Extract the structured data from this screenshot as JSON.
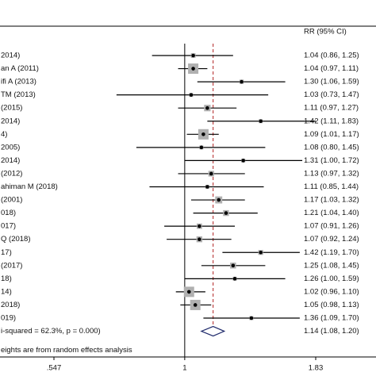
{
  "chart_data": {
    "type": "forest",
    "column_header": "RR (95% CI)",
    "studies": [
      "2014)",
      "an A (2011)",
      "ifi A (2013)",
      "TM (2013)",
      "(2015)",
      "2014)",
      "4)",
      "2005)",
      "2014)",
      "(2012)",
      "ahiman M (2018)",
      "(2001)",
      "018)",
      "017)",
      "Q (2018)",
      "17)",
      "(2017)",
      "18)",
      "14)",
      "2018)",
      "019)"
    ],
    "values": [
      1.04,
      1.04,
      1.3,
      1.03,
      1.11,
      1.42,
      1.09,
      1.08,
      1.31,
      1.13,
      1.11,
      1.17,
      1.21,
      1.07,
      1.07,
      1.42,
      1.25,
      1.26,
      1.02,
      1.05,
      1.36
    ],
    "lower": [
      0.86,
      0.97,
      1.06,
      0.73,
      0.97,
      1.11,
      1.01,
      0.8,
      1.0,
      0.97,
      0.85,
      1.03,
      1.04,
      0.91,
      0.92,
      1.19,
      1.08,
      1.0,
      0.96,
      0.98,
      1.09
    ],
    "upper": [
      1.25,
      1.11,
      1.59,
      1.47,
      1.27,
      1.83,
      1.17,
      1.45,
      1.72,
      1.32,
      1.44,
      1.32,
      1.4,
      1.26,
      1.24,
      1.7,
      1.45,
      1.59,
      1.1,
      1.13,
      1.7
    ],
    "value_labels": [
      "1.04 (0.86, 1.25)",
      "1.04 (0.97, 1.11)",
      "1.30 (1.06, 1.59)",
      "1.03 (0.73, 1.47)",
      "1.11 (0.97, 1.27)",
      "1.42 (1.11, 1.83)",
      "1.09 (1.01, 1.17)",
      "1.08 (0.80, 1.45)",
      "1.31 (1.00, 1.72)",
      "1.13 (0.97, 1.32)",
      "1.11 (0.85, 1.44)",
      "1.17 (1.03, 1.32)",
      "1.21 (1.04, 1.40)",
      "1.07 (0.91, 1.26)",
      "1.07 (0.92, 1.24)",
      "1.42 (1.19, 1.70)",
      "1.25 (1.08, 1.45)",
      "1.26 (1.00, 1.59)",
      "1.02 (0.96, 1.10)",
      "1.05 (0.98, 1.13)",
      "1.36 (1.09, 1.70)"
    ],
    "overall": {
      "label": "i-squared = 62.3%, p = 0.000)",
      "value": 1.14,
      "lower": 1.08,
      "upper": 1.2,
      "value_label": "1.14 (1.08, 1.20)"
    },
    "footnote": "eights are from random effects analysis",
    "xlim": [
      0.547,
      1.83
    ],
    "xticks": [
      {
        "value": 0.547,
        "label": ".547"
      },
      1,
      1.83
    ],
    "log_x": true,
    "box_color": "#b0b0b0",
    "line_color": "#000000",
    "reference_color": "#b22222",
    "diamond_color": "#1f2a6b"
  }
}
